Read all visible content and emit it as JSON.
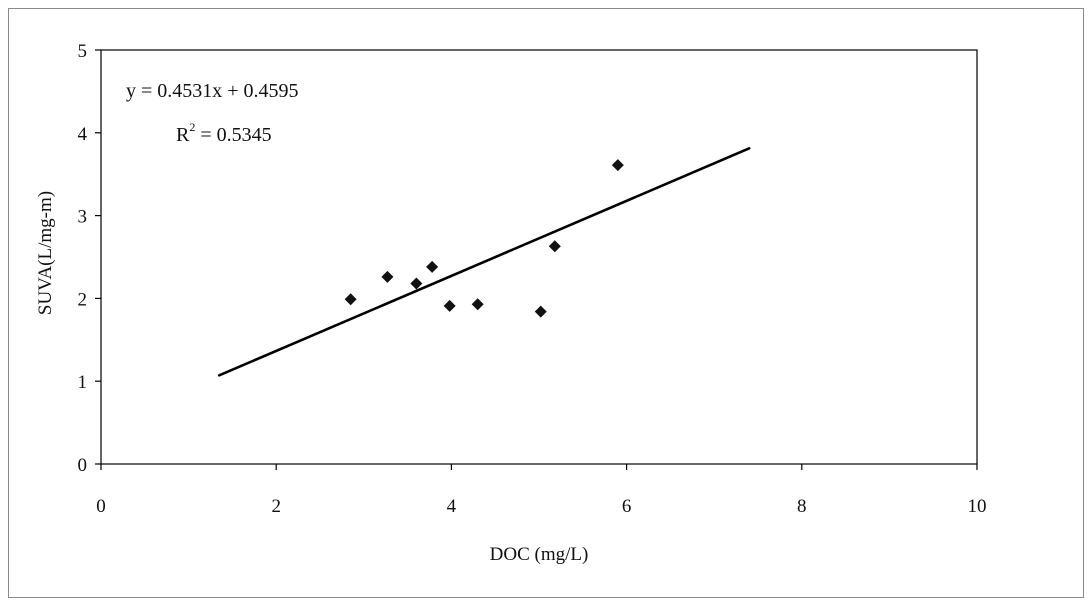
{
  "chart_data": {
    "type": "scatter",
    "title": "",
    "xlabel": "DOC (mg/L)",
    "ylabel": "SUVA(L/mg-m)",
    "xlim": [
      0,
      10
    ],
    "ylim": [
      0,
      5
    ],
    "x_ticks": [
      "0",
      "2",
      "4",
      "6",
      "8",
      "10"
    ],
    "y_ticks": [
      "0",
      "1",
      "2",
      "3",
      "4",
      "5"
    ],
    "grid": false,
    "legend": "none",
    "marker": "diamond",
    "marker_color": "#111111",
    "points": [
      {
        "x": 2.85,
        "y": 1.99
      },
      {
        "x": 3.27,
        "y": 2.26
      },
      {
        "x": 3.6,
        "y": 2.18
      },
      {
        "x": 3.78,
        "y": 2.38
      },
      {
        "x": 3.98,
        "y": 1.91
      },
      {
        "x": 4.3,
        "y": 1.93
      },
      {
        "x": 5.02,
        "y": 1.84
      },
      {
        "x": 5.18,
        "y": 2.63
      },
      {
        "x": 5.9,
        "y": 3.61
      }
    ],
    "trendline": {
      "type": "linear",
      "slope": 0.4531,
      "intercept": 0.4595,
      "x_range": [
        1.35,
        7.4
      ]
    },
    "annotations": {
      "equation": "y = 0.4531x + 0.4595",
      "r_squared_label": "R",
      "r_squared_exp": "2",
      "r_squared_value": " = 0.5345"
    }
  }
}
